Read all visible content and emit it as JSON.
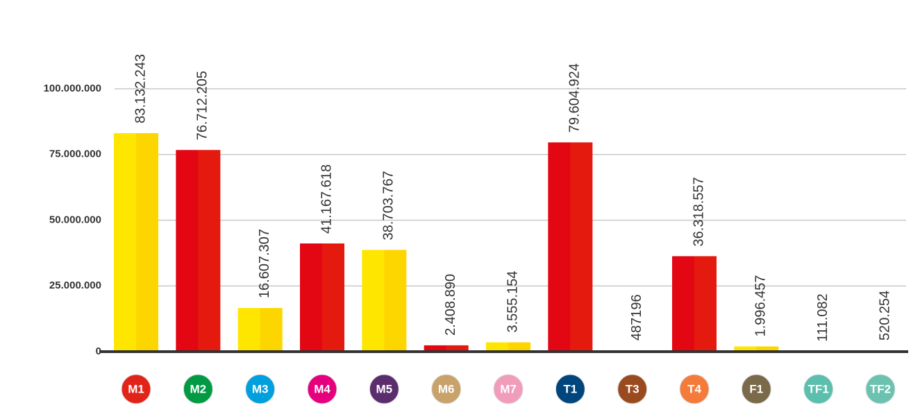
{
  "chart_data": {
    "type": "bar",
    "categories": [
      "M1",
      "M2",
      "M3",
      "M4",
      "M5",
      "M6",
      "M7",
      "T1",
      "T3",
      "T4",
      "F1",
      "TF1",
      "TF2"
    ],
    "values": [
      83132243,
      76712205,
      16607307,
      41167618,
      38703767,
      2408890,
      3555154,
      79604924,
      487196,
      36318557,
      1996457,
      111082,
      520254
    ],
    "value_labels": [
      "83.132.243",
      "76.712.205",
      "16.607.307",
      "41.167.618",
      "38.703.767",
      "2.408.890",
      "3.555.154",
      "79.604.924",
      "487196",
      "36.318.557",
      "1.996.457",
      "111.082",
      "520.254"
    ],
    "colors": [
      "#ffe600",
      "#e30613",
      "#ffe600",
      "#e30613",
      "#ffe600",
      "#e30613",
      "#ffe600",
      "#e30613",
      "#ffe600",
      "#e30613",
      "#ffe600",
      "#e30613",
      "#ffe600"
    ],
    "category_colors": [
      "#e2231a",
      "#009a44",
      "#00a0de",
      "#e5007d",
      "#5c2d6e",
      "#c9a26a",
      "#f19cbb",
      "#00457c",
      "#9a4a1f",
      "#f47b3a",
      "#7a6a4a",
      "#5bbfad",
      "#6cc2b0"
    ],
    "ylim": [
      0,
      100000000
    ],
    "yticks": [
      0,
      {
        "value": 25000000,
        "label": "25.000.000"
      },
      {
        "value": 50000000,
        "label": "50.000.000"
      },
      {
        "value": 75000000,
        "label": "75.000.000"
      },
      {
        "value": 100000000,
        "label": "100.000.000"
      }
    ],
    "grid": true
  }
}
